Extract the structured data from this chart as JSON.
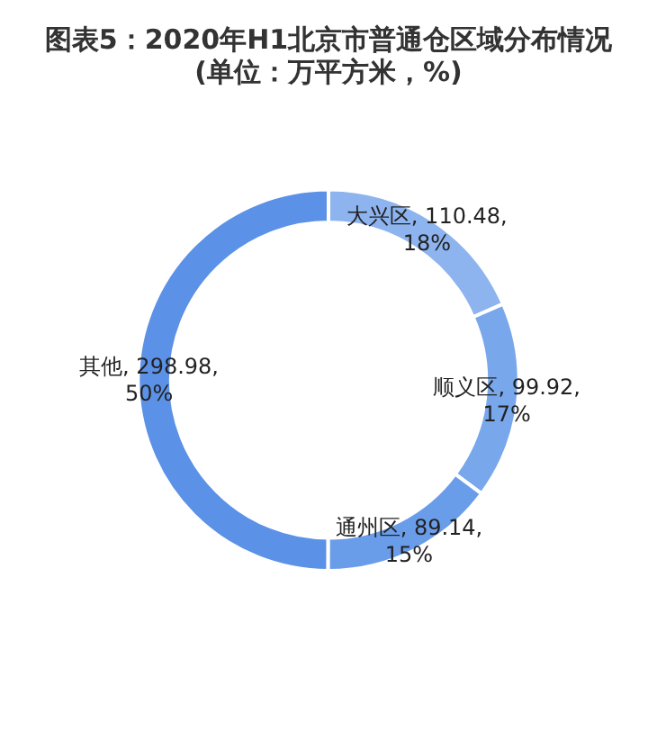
{
  "chart_data": {
    "type": "donut",
    "title": "图表5：2020年H1北京市普通仓区域分布情况\n(单位：万平方米，%)",
    "categories": [
      "大兴区",
      "顺义区",
      "通州区",
      "其他"
    ],
    "values": [
      110.48,
      99.92,
      89.14,
      298.98
    ],
    "colors": [
      "#8db4ee",
      "#78a7ec",
      "#6a9de9",
      "#5b91e6"
    ],
    "value_labels": [
      "110.48,\n18%",
      "99.92,\n17%",
      "89.14,\n15%",
      "298.98,\n50%"
    ],
    "legend": false
  }
}
